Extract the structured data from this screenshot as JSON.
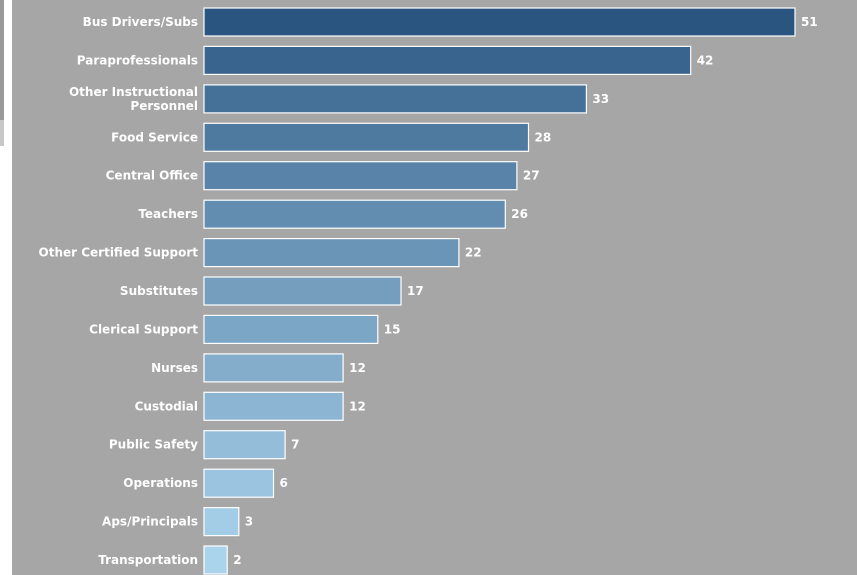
{
  "colors": {
    "background": "#a6a6a6",
    "bar_dark": "#2a5581",
    "bar_light": "#aad3ec",
    "bar_border": "#ffffff",
    "text": "#ffffff"
  },
  "chart_data": {
    "type": "bar",
    "orientation": "horizontal",
    "title": "",
    "xlabel": "",
    "ylabel": "",
    "xlim": [
      0,
      51
    ],
    "grid": false,
    "categories": [
      [
        "Bus Drivers/Subs"
      ],
      [
        "Paraprofessionals"
      ],
      [
        "Other Instructional",
        "Personnel"
      ],
      [
        "Food Service"
      ],
      [
        "Central Office"
      ],
      [
        "Teachers"
      ],
      [
        "Other Certified Support"
      ],
      [
        "Substitutes"
      ],
      [
        "Clerical Support"
      ],
      [
        "Nurses"
      ],
      [
        "Custodial"
      ],
      [
        "Public Safety"
      ],
      [
        "Operations"
      ],
      [
        "Aps/Principals"
      ],
      [
        "Transportation"
      ]
    ],
    "values": [
      51,
      42,
      33,
      28,
      27,
      26,
      22,
      17,
      15,
      12,
      12,
      7,
      6,
      3,
      2
    ]
  }
}
